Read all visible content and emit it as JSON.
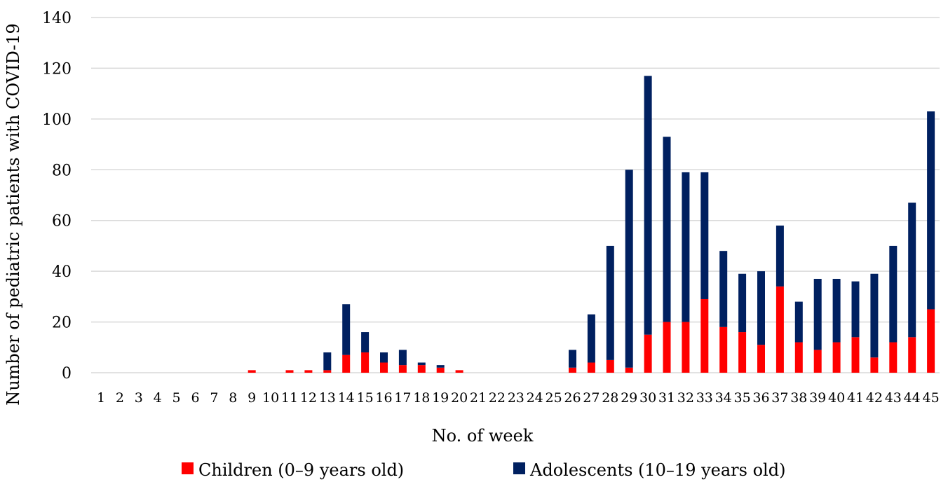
{
  "chart_data": {
    "type": "bar",
    "stacked": true,
    "xlabel": "No. of week",
    "ylabel": "Number of pediatric patients with COVID-19",
    "ylim": [
      0,
      140
    ],
    "yticks": [
      0,
      20,
      40,
      60,
      80,
      100,
      120,
      140
    ],
    "grid": true,
    "legend_position": "bottom",
    "categories": [
      "1",
      "2",
      "3",
      "4",
      "5",
      "6",
      "7",
      "8",
      "9",
      "10",
      "11",
      "12",
      "13",
      "14",
      "15",
      "16",
      "17",
      "18",
      "19",
      "20",
      "21",
      "22",
      "23",
      "24",
      "25",
      "26",
      "27",
      "28",
      "29",
      "30",
      "31",
      "32",
      "33",
      "34",
      "35",
      "36",
      "37",
      "38",
      "39",
      "40",
      "41",
      "42",
      "43",
      "44",
      "45"
    ],
    "series": [
      {
        "name": "Children (0–9 years old)",
        "color": "#ff0000",
        "values": [
          0,
          0,
          0,
          0,
          0,
          0,
          0,
          0,
          1,
          0,
          1,
          1,
          1,
          7,
          8,
          4,
          3,
          3,
          2,
          1,
          0,
          0,
          0,
          0,
          0,
          2,
          4,
          5,
          2,
          15,
          20,
          20,
          29,
          18,
          16,
          11,
          34,
          12,
          9,
          12,
          14,
          6,
          12,
          14,
          25
        ]
      },
      {
        "name": "Adolescents (10–19 years old)",
        "color": "#002060",
        "values": [
          0,
          0,
          0,
          0,
          0,
          0,
          0,
          0,
          0,
          0,
          0,
          0,
          7,
          20,
          8,
          4,
          6,
          1,
          1,
          0,
          0,
          0,
          0,
          0,
          0,
          7,
          19,
          45,
          78,
          102,
          73,
          59,
          50,
          30,
          23,
          29,
          24,
          16,
          28,
          25,
          22,
          33,
          38,
          53,
          78
        ]
      }
    ]
  }
}
